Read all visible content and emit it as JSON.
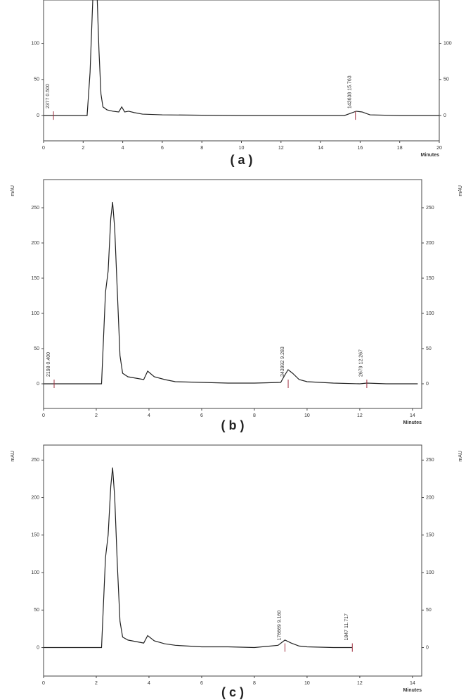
{
  "chart_data": [
    {
      "type": "line",
      "caption": "( a )",
      "x_label": "Minutes",
      "x": [
        0,
        0.5,
        1,
        2,
        2.2,
        2.35,
        2.5,
        2.6,
        2.7,
        2.8,
        2.9,
        3.0,
        3.2,
        3.5,
        3.8,
        3.95,
        4.1,
        4.3,
        4.6,
        5,
        6,
        8,
        10,
        12,
        14,
        15.2,
        15.5,
        15.8,
        16.1,
        16.3,
        16.5,
        18,
        20
      ],
      "series": [
        {
          "color": "#222222",
          "values": [
            0,
            0,
            0,
            0,
            0,
            60,
            170,
            200,
            170,
            90,
            30,
            12,
            8,
            6,
            5,
            12,
            5,
            6,
            4,
            2,
            1,
            0.5,
            0,
            0,
            0,
            0,
            3,
            6,
            5,
            3,
            1,
            0,
            0
          ]
        }
      ],
      "xlim": [
        0,
        20
      ],
      "xticks": [
        0,
        2,
        4,
        6,
        8,
        10,
        12,
        14,
        16,
        18,
        20
      ],
      "ylim": [
        -35,
        160
      ],
      "yticks": [
        0,
        50,
        100
      ],
      "annotations": [
        {
          "text": "2377  0.500",
          "x": 0.5
        },
        {
          "text": "143638  15.763",
          "x": 15.763
        }
      ],
      "mark_color": "#a03040"
    },
    {
      "type": "line",
      "caption": "( b )",
      "x_label": "Minutes",
      "y_label": "mAU",
      "x": [
        0,
        0.4,
        1,
        2,
        2.2,
        2.35,
        2.45,
        2.55,
        2.62,
        2.7,
        2.8,
        2.9,
        3.0,
        3.2,
        3.5,
        3.8,
        3.95,
        4.2,
        4.6,
        5,
        6,
        7,
        8,
        9,
        9.15,
        9.28,
        9.45,
        9.7,
        10,
        11,
        12,
        12.27,
        13,
        14.2
      ],
      "series": [
        {
          "color": "#222222",
          "values": [
            0,
            0,
            0,
            0,
            0,
            130,
            160,
            235,
            258,
            220,
            130,
            40,
            15,
            10,
            8,
            6,
            18,
            10,
            6,
            3,
            2,
            1,
            1,
            2,
            12,
            20,
            15,
            6,
            3,
            1,
            0,
            1,
            0,
            0
          ]
        }
      ],
      "xlim": [
        0,
        14.35
      ],
      "xticks": [
        0,
        2,
        4,
        6,
        8,
        10,
        12,
        14
      ],
      "ylim": [
        -35,
        290
      ],
      "yticks": [
        0,
        50,
        100,
        150,
        200,
        250
      ],
      "annotations": [
        {
          "text": "2198  0.400",
          "x": 0.4
        },
        {
          "text": "343992  9.283",
          "x": 9.283
        },
        {
          "text": "2679  12.267",
          "x": 12.267
        }
      ],
      "mark_color": "#a03040"
    },
    {
      "type": "line",
      "caption": "( c )",
      "x_label": "Minutes",
      "y_label": "mAU",
      "x": [
        0,
        1,
        2,
        2.2,
        2.35,
        2.45,
        2.55,
        2.62,
        2.7,
        2.8,
        2.9,
        3.0,
        3.2,
        3.5,
        3.8,
        3.95,
        4.2,
        4.6,
        5,
        6,
        7,
        8,
        8.9,
        9.16,
        9.4,
        9.7,
        10,
        11,
        11.717
      ],
      "series": [
        {
          "color": "#222222",
          "values": [
            0,
            0,
            0,
            0,
            120,
            150,
            215,
            240,
            200,
            110,
            35,
            14,
            10,
            8,
            6,
            16,
            9,
            5,
            3,
            1,
            1,
            0,
            3,
            10,
            6,
            2,
            1,
            0,
            0
          ]
        }
      ],
      "xlim": [
        0,
        14.35
      ],
      "xticks": [
        0,
        2,
        4,
        6,
        8,
        10,
        12,
        14
      ],
      "ylim": [
        -38,
        270
      ],
      "yticks": [
        0,
        50,
        100,
        150,
        200,
        250
      ],
      "annotations": [
        {
          "text": "176669  9.160",
          "x": 9.16
        },
        {
          "text": "1847  11.717",
          "x": 11.717
        }
      ],
      "mark_color": "#a03040"
    }
  ]
}
